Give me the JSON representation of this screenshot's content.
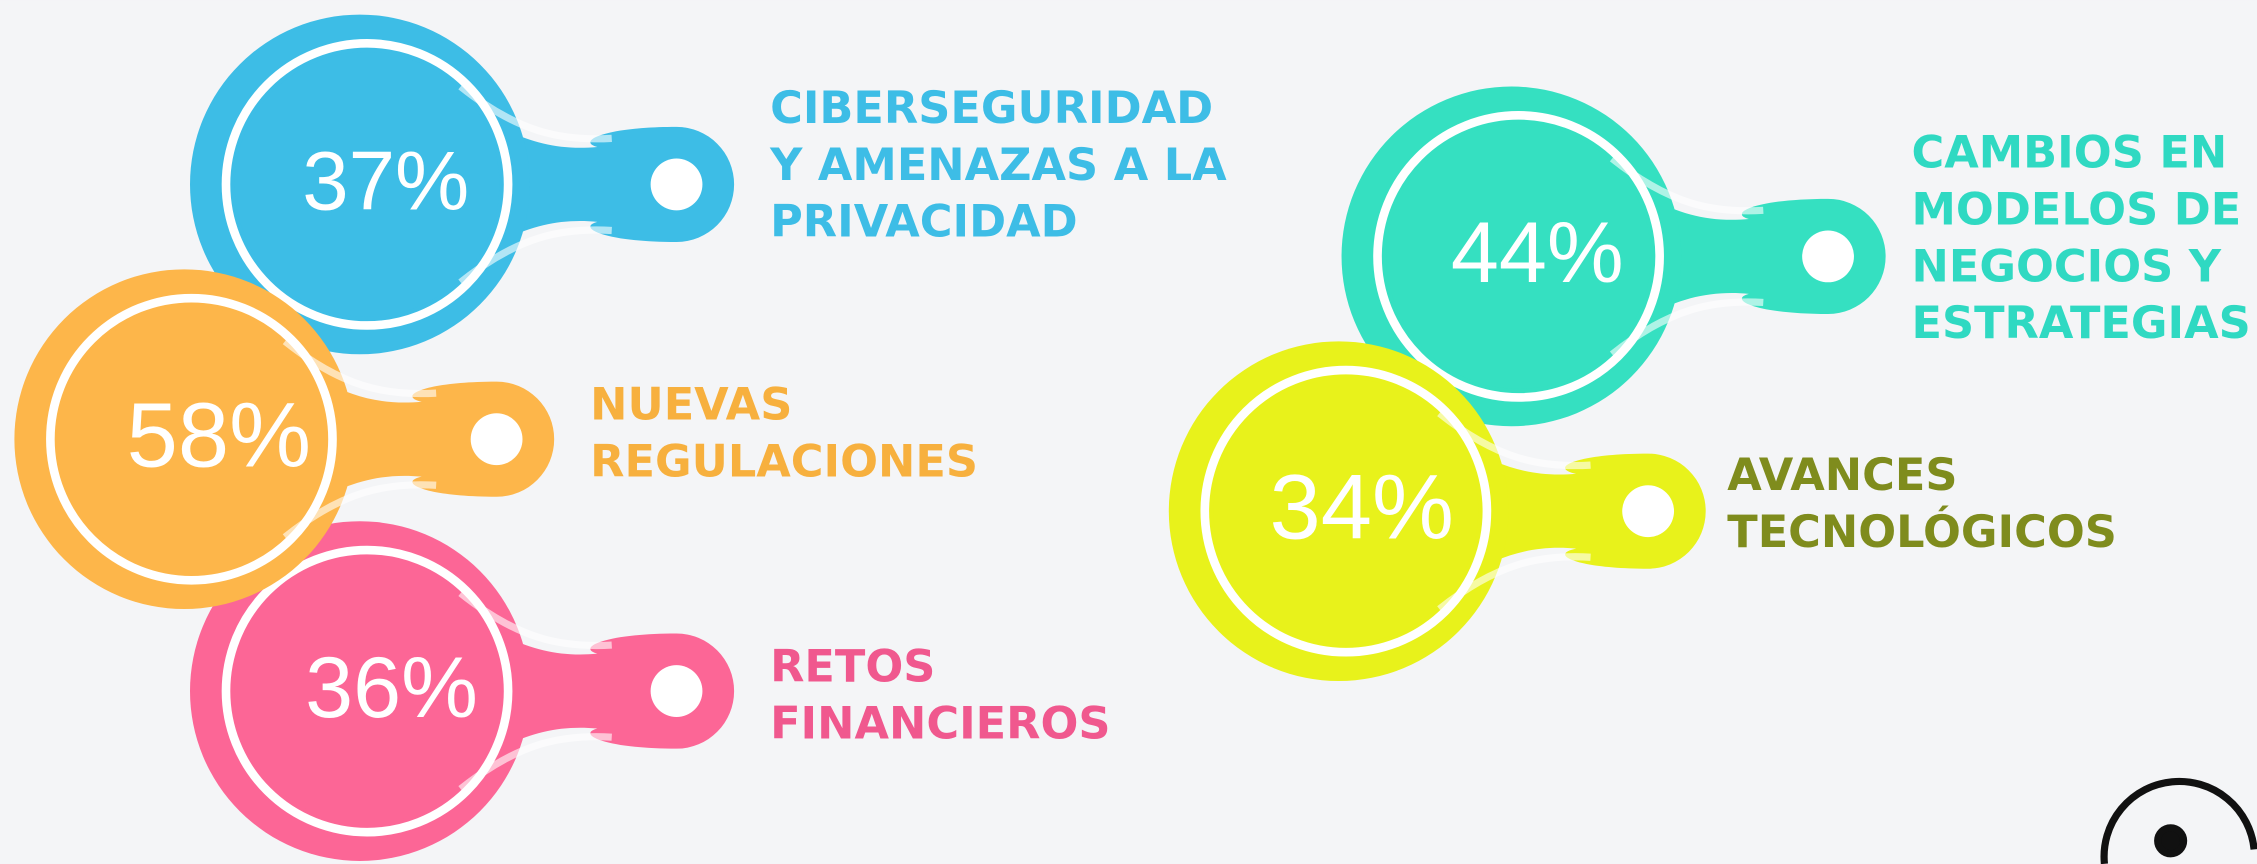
{
  "items": [
    {
      "percent": "37%",
      "lines": [
        "CIBERSEGURIDAD",
        "Y AMENAZAS A LA",
        "PRIVACIDAD"
      ],
      "color": "#3dbde6",
      "text_color": "#3dbde6"
    },
    {
      "percent": "58%",
      "lines": [
        "NUEVAS",
        "REGULACIONES"
      ],
      "color": "#fdb64a",
      "text_color": "#f7b03e"
    },
    {
      "percent": "36%",
      "lines": [
        "RETOS",
        "FINANCIEROS"
      ],
      "color": "#fc6696",
      "text_color": "#f0588e"
    },
    {
      "percent": "44%",
      "lines": [
        "CAMBIOS EN",
        "MODELOS DE",
        "NEGOCIOS Y",
        "ESTRATEGIAS"
      ],
      "color": "#35e0c1",
      "text_color": "#2fd9c2"
    },
    {
      "percent": "34%",
      "lines": [
        "AVANCES",
        "TECNOLÓGICOS"
      ],
      "color": "#e8f21b",
      "text_color": "#7f8c1d"
    }
  ]
}
